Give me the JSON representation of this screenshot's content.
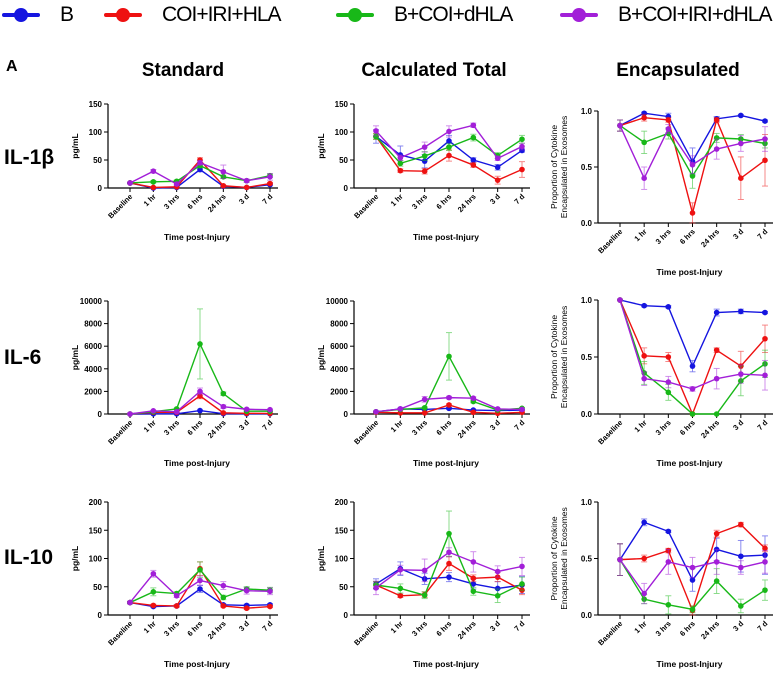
{
  "legend": [
    {
      "name": "B",
      "color": "#1515e0"
    },
    {
      "name": "COI+IRI+HLA",
      "color": "#ee1111"
    },
    {
      "name": "B+COI+dHLA",
      "color": "#18b818"
    },
    {
      "name": "B+COI+IRI+dHLA",
      "color": "#a21fd8"
    }
  ],
  "panel_label": "A",
  "column_titles": [
    "Standard",
    "Calculated Total",
    "Encapsulated"
  ],
  "row_titles": [
    "IL-1β",
    "IL-6",
    "IL-10"
  ],
  "chart_data": [
    {
      "id": "il1b-standard",
      "type": "line",
      "row": 0,
      "col": 0,
      "title": "",
      "xlabel": "Time post-Injury",
      "ylabel": "pg/mL",
      "categories": [
        "Baseline",
        "1 hr",
        "3 hrs",
        "6 hrs",
        "24 hrs",
        "3 d",
        "7 d"
      ],
      "ylim": [
        0,
        150
      ],
      "yticks": [
        0,
        50,
        100,
        150
      ],
      "ytick_labels": [
        "0",
        "50",
        "100",
        "150"
      ],
      "series": [
        {
          "name": "B",
          "values": [
            9,
            0,
            1,
            33,
            3,
            1,
            6
          ],
          "err": [
            1,
            1,
            1,
            4,
            1,
            1,
            2
          ]
        },
        {
          "name": "COI+IRI+HLA",
          "values": [
            9,
            1,
            2,
            50,
            4,
            1,
            8
          ],
          "err": [
            1,
            1,
            1,
            4,
            1,
            1,
            2
          ]
        },
        {
          "name": "B+COI+dHLA",
          "values": [
            9,
            11,
            12,
            40,
            20,
            13,
            22
          ],
          "err": [
            1,
            2,
            2,
            4,
            3,
            2,
            3
          ]
        },
        {
          "name": "B+COI+IRI+dHLA",
          "values": [
            9,
            30,
            7,
            45,
            29,
            13,
            20
          ],
          "err": [
            1,
            3,
            2,
            4,
            12,
            3,
            6
          ]
        }
      ]
    },
    {
      "id": "il1b-total",
      "type": "line",
      "row": 0,
      "col": 1,
      "title": "",
      "xlabel": "Time post-Injury",
      "ylabel": "pg/mL",
      "categories": [
        "Baseline",
        "1 hr",
        "3 hrs",
        "6 hrs",
        "24 hrs",
        "3 d",
        "7 d"
      ],
      "ylim": [
        0,
        150
      ],
      "yticks": [
        0,
        50,
        100,
        150
      ],
      "ytick_labels": [
        "0",
        "50",
        "100",
        "150"
      ],
      "series": [
        {
          "name": "B",
          "values": [
            92,
            59,
            48,
            84,
            50,
            37,
            67
          ],
          "err": [
            12,
            16,
            12,
            10,
            4,
            5,
            3
          ]
        },
        {
          "name": "COI+IRI+HLA",
          "values": [
            92,
            31,
            30,
            58,
            41,
            14,
            33
          ],
          "err": [
            5,
            3,
            5,
            10,
            4,
            7,
            14
          ]
        },
        {
          "name": "B+COI+dHLA",
          "values": [
            92,
            44,
            57,
            73,
            90,
            58,
            87
          ],
          "err": [
            5,
            5,
            8,
            6,
            6,
            5,
            7
          ]
        },
        {
          "name": "B+COI+IRI+dHLA",
          "values": [
            102,
            54,
            73,
            101,
            112,
            53,
            74
          ],
          "err": [
            9,
            5,
            9,
            10,
            4,
            4,
            6
          ]
        }
      ]
    },
    {
      "id": "il1b-encapsulated",
      "type": "line",
      "row": 0,
      "col": 2,
      "title": "",
      "xlabel": "Time post-Injury",
      "ylabel": "Proportion of Cytokine Encapsulated in Exosomes",
      "categories": [
        "Baseline",
        "1 hr",
        "3 hrs",
        "6 hrs",
        "24 hrs",
        "3 d",
        "7 d"
      ],
      "ylim": [
        0,
        1
      ],
      "yticks": [
        0,
        0.5,
        1
      ],
      "ytick_labels": [
        "0.0",
        "0.5",
        "1.0"
      ],
      "series": [
        {
          "name": "B",
          "values": [
            0.87,
            0.98,
            0.95,
            0.55,
            0.93,
            0.96,
            0.91
          ],
          "err": [
            0.05,
            0.01,
            0.03,
            0.12,
            0.02,
            0.01,
            0.01
          ]
        },
        {
          "name": "COI+IRI+HLA",
          "values": [
            0.87,
            0.94,
            0.92,
            0.09,
            0.92,
            0.4,
            0.56
          ],
          "err": [
            0.05,
            0.03,
            0.02,
            0.09,
            0.02,
            0.19,
            0.23
          ]
        },
        {
          "name": "B+COI+dHLA",
          "values": [
            0.87,
            0.72,
            0.8,
            0.42,
            0.76,
            0.75,
            0.71
          ],
          "err": [
            0.05,
            0.1,
            0.05,
            0.11,
            0.04,
            0.04,
            0.04
          ]
        },
        {
          "name": "B+COI+IRI+dHLA",
          "values": [
            0.87,
            0.4,
            0.84,
            0.52,
            0.66,
            0.71,
            0.75
          ],
          "err": [
            0.05,
            0.1,
            0.04,
            0.08,
            0.09,
            0.07,
            0.11
          ]
        }
      ]
    },
    {
      "id": "il6-standard",
      "type": "line",
      "row": 1,
      "col": 0,
      "title": "",
      "xlabel": "Time post-Injury",
      "ylabel": "pg/mL",
      "categories": [
        "Baseline",
        "1 hr",
        "3 hrs",
        "6 hrs",
        "24 hrs",
        "3 d",
        "7 d"
      ],
      "ylim": [
        0,
        10000
      ],
      "yticks": [
        0,
        2000,
        4000,
        6000,
        8000,
        10000
      ],
      "ytick_labels": [
        "0",
        "2000",
        "4000",
        "6000",
        "8000",
        "10000"
      ],
      "series": [
        {
          "name": "B",
          "values": [
            0,
            20,
            20,
            300,
            30,
            20,
            20
          ],
          "err": [
            10,
            10,
            10,
            60,
            10,
            10,
            10
          ]
        },
        {
          "name": "COI+IRI+HLA",
          "values": [
            0,
            150,
            150,
            1600,
            100,
            60,
            50
          ],
          "err": [
            10,
            30,
            30,
            250,
            30,
            20,
            20
          ]
        },
        {
          "name": "B+COI+dHLA",
          "values": [
            0,
            200,
            450,
            6200,
            1800,
            250,
            250
          ],
          "err": [
            10,
            40,
            60,
            3100,
            150,
            40,
            40
          ]
        },
        {
          "name": "B+COI+IRI+dHLA",
          "values": [
            0,
            280,
            200,
            2000,
            650,
            420,
            380
          ],
          "err": [
            10,
            40,
            40,
            300,
            150,
            50,
            50
          ]
        }
      ]
    },
    {
      "id": "il6-total",
      "type": "line",
      "row": 1,
      "col": 1,
      "title": "",
      "xlabel": "Time post-Injury",
      "ylabel": "pg/mL",
      "categories": [
        "Baseline",
        "1 hr",
        "3 hrs",
        "6 hrs",
        "24 hrs",
        "3 d",
        "7 d"
      ],
      "ylim": [
        0,
        10000
      ],
      "yticks": [
        0,
        2000,
        4000,
        6000,
        8000,
        10000
      ],
      "ytick_labels": [
        "0",
        "2000",
        "4000",
        "6000",
        "8000",
        "10000"
      ],
      "series": [
        {
          "name": "B",
          "values": [
            200,
            450,
            400,
            500,
            350,
            300,
            350
          ],
          "err": [
            40,
            60,
            60,
            80,
            50,
            40,
            40
          ]
        },
        {
          "name": "COI+IRI+HLA",
          "values": [
            150,
            100,
            100,
            800,
            150,
            60,
            150
          ],
          "err": [
            30,
            30,
            30,
            100,
            30,
            20,
            30
          ]
        },
        {
          "name": "B+COI+dHLA",
          "values": [
            200,
            400,
            550,
            5100,
            1100,
            350,
            500
          ],
          "err": [
            40,
            60,
            80,
            2100,
            120,
            50,
            60
          ]
        },
        {
          "name": "B+COI+IRI+dHLA",
          "values": [
            200,
            450,
            1300,
            1450,
            1400,
            450,
            400
          ],
          "err": [
            40,
            60,
            250,
            120,
            120,
            50,
            50
          ]
        }
      ]
    },
    {
      "id": "il6-encapsulated",
      "type": "line",
      "row": 1,
      "col": 2,
      "title": "",
      "xlabel": "Time post-Injury",
      "ylabel": "Proportion of Cytokine Encapsulated in Exosomes",
      "categories": [
        "Baseline",
        "1 hr",
        "3 hrs",
        "6 hrs",
        "24 hrs",
        "3 d",
        "7 d"
      ],
      "ylim": [
        0,
        1
      ],
      "yticks": [
        0,
        0.5,
        1
      ],
      "ytick_labels": [
        "0.0",
        "0.5",
        "1.0"
      ],
      "series": [
        {
          "name": "B",
          "values": [
            1.0,
            0.95,
            0.94,
            0.42,
            0.89,
            0.9,
            0.89
          ],
          "err": [
            0.0,
            0.01,
            0.01,
            0.05,
            0.03,
            0.02,
            0.01
          ]
        },
        {
          "name": "COI+IRI+HLA",
          "values": [
            1.0,
            0.51,
            0.5,
            0.0,
            0.56,
            0.42,
            0.66
          ],
          "err": [
            0.0,
            0.07,
            0.04,
            0.0,
            0.02,
            0.13,
            0.12
          ]
        },
        {
          "name": "B+COI+dHLA",
          "values": [
            1.0,
            0.36,
            0.19,
            0.0,
            0.0,
            0.29,
            0.44
          ],
          "err": [
            0.0,
            0.1,
            0.07,
            0.0,
            0.0,
            0.13,
            0.12
          ]
        },
        {
          "name": "B+COI+IRI+dHLA",
          "values": [
            1.0,
            0.31,
            0.28,
            0.22,
            0.31,
            0.35,
            0.34
          ],
          "err": [
            0.0,
            0.06,
            0.05,
            0.02,
            0.09,
            0.08,
            0.13
          ]
        }
      ]
    },
    {
      "id": "il10-standard",
      "type": "line",
      "row": 2,
      "col": 0,
      "title": "",
      "xlabel": "Time post-Injury",
      "ylabel": "pg/mL",
      "categories": [
        "Baseline",
        "1 hr",
        "3 hrs",
        "6 hrs",
        "24 hrs",
        "3 d",
        "7 d"
      ],
      "ylim": [
        0,
        200
      ],
      "yticks": [
        0,
        50,
        100,
        150,
        200
      ],
      "ytick_labels": [
        "0",
        "50",
        "100",
        "150",
        "200"
      ],
      "series": [
        {
          "name": "B",
          "values": [
            22,
            15,
            16,
            46,
            18,
            17,
            18
          ],
          "err": [
            2,
            2,
            2,
            6,
            2,
            2,
            2
          ]
        },
        {
          "name": "COI+IRI+HLA",
          "values": [
            22,
            17,
            16,
            82,
            16,
            12,
            15
          ],
          "err": [
            2,
            2,
            2,
            12,
            2,
            2,
            2
          ]
        },
        {
          "name": "B+COI+dHLA",
          "values": [
            22,
            41,
            38,
            80,
            31,
            46,
            44
          ],
          "err": [
            2,
            7,
            3,
            14,
            4,
            4,
            5
          ]
        },
        {
          "name": "B+COI+IRI+dHLA",
          "values": [
            22,
            73,
            34,
            61,
            52,
            43,
            42
          ],
          "err": [
            2,
            6,
            3,
            8,
            7,
            6,
            6
          ]
        }
      ]
    },
    {
      "id": "il10-total",
      "type": "line",
      "row": 2,
      "col": 1,
      "title": "",
      "xlabel": "Time post-Injury",
      "ylabel": "pg/mL",
      "categories": [
        "Baseline",
        "1 hr",
        "3 hrs",
        "6 hrs",
        "24 hrs",
        "3 d",
        "7 d"
      ],
      "ylim": [
        0,
        200
      ],
      "yticks": [
        0,
        50,
        100,
        150,
        200
      ],
      "ytick_labels": [
        "0",
        "50",
        "100",
        "150",
        "200"
      ],
      "series": [
        {
          "name": "B",
          "values": [
            55,
            82,
            64,
            67,
            55,
            47,
            53
          ],
          "err": [
            9,
            12,
            10,
            8,
            9,
            12,
            15
          ]
        },
        {
          "name": "COI+IRI+HLA",
          "values": [
            53,
            34,
            36,
            91,
            65,
            67,
            44
          ],
          "err": [
            6,
            3,
            5,
            12,
            6,
            8,
            8
          ]
        },
        {
          "name": "B+COI+dHLA",
          "values": [
            53,
            47,
            35,
            144,
            42,
            34,
            55
          ],
          "err": [
            6,
            8,
            6,
            40,
            7,
            12,
            12
          ]
        },
        {
          "name": "B+COI+IRI+dHLA",
          "values": [
            48,
            80,
            79,
            111,
            94,
            77,
            86
          ],
          "err": [
            12,
            8,
            20,
            8,
            18,
            10,
            16
          ]
        }
      ]
    },
    {
      "id": "il10-encapsulated",
      "type": "line",
      "row": 2,
      "col": 2,
      "title": "",
      "xlabel": "Time post-Injury",
      "ylabel": "Proportion of Cytokine Encapsulated in Exosomes",
      "categories": [
        "Baseline",
        "1 hr",
        "3 hrs",
        "6 hrs",
        "24 hrs",
        "3 d",
        "7 d"
      ],
      "ylim": [
        0,
        1
      ],
      "yticks": [
        0,
        0.5,
        1
      ],
      "ytick_labels": [
        "0.0",
        "0.5",
        "1.0"
      ],
      "series": [
        {
          "name": "B",
          "values": [
            0.49,
            0.82,
            0.74,
            0.31,
            0.58,
            0.52,
            0.53
          ],
          "err": [
            0.14,
            0.03,
            0.01,
            0.1,
            0.1,
            0.14,
            0.17
          ]
        },
        {
          "name": "COI+IRI+HLA",
          "values": [
            0.49,
            0.5,
            0.57,
            0.04,
            0.72,
            0.8,
            0.59
          ],
          "err": [
            0.14,
            0.03,
            0.02,
            0.04,
            0.03,
            0.02,
            0.03
          ]
        },
        {
          "name": "B+COI+dHLA",
          "values": [
            0.49,
            0.14,
            0.09,
            0.05,
            0.3,
            0.08,
            0.22
          ],
          "err": [
            0.14,
            0.04,
            0.08,
            0.03,
            0.11,
            0.06,
            0.09
          ]
        },
        {
          "name": "B+COI+IRI+dHLA",
          "values": [
            0.49,
            0.19,
            0.47,
            0.42,
            0.47,
            0.42,
            0.47
          ],
          "err": [
            0.14,
            0.09,
            0.11,
            0.09,
            0.11,
            0.06,
            0.1
          ]
        }
      ]
    }
  ]
}
